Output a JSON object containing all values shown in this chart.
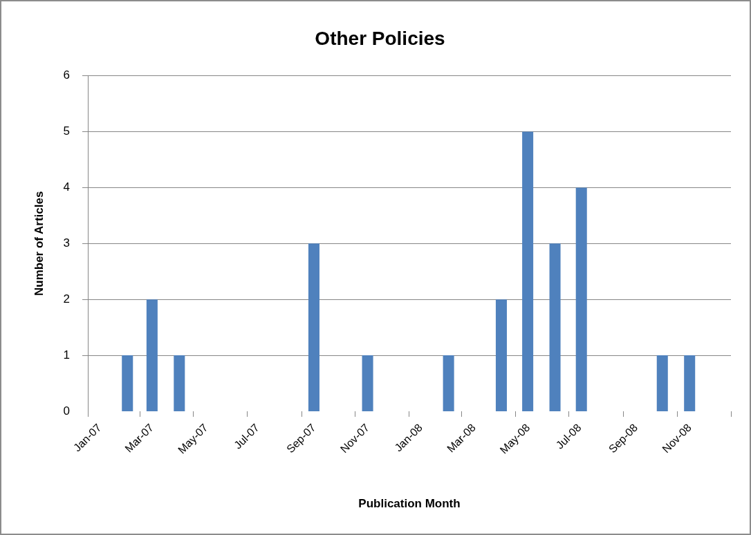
{
  "chart_data": {
    "type": "bar",
    "title": "Other Policies",
    "xlabel": "Publication Month",
    "ylabel": "Number of Articles",
    "x": [
      "2007-02-15",
      "2007-03-15",
      "2007-04-15",
      "2007-09-15",
      "2007-11-15",
      "2008-02-15",
      "2008-04-15",
      "2008-05-15",
      "2008-06-15",
      "2008-07-15",
      "2008-10-15",
      "2008-11-15"
    ],
    "values": [
      1,
      2,
      1,
      3,
      1,
      1,
      2,
      5,
      3,
      4,
      1,
      1
    ],
    "color": "#4f81bd",
    "xlim": [
      "2007-01",
      "2009-01"
    ],
    "xticks": [
      {
        "value": "2007-01",
        "label": "Jan-07"
      },
      {
        "value": "2007-03",
        "label": "Mar-07"
      },
      {
        "value": "2007-05",
        "label": "May-07"
      },
      {
        "value": "2007-07",
        "label": "Jul-07"
      },
      {
        "value": "2007-09",
        "label": "Sep-07"
      },
      {
        "value": "2007-11",
        "label": "Nov-07"
      },
      {
        "value": "2008-01",
        "label": "Jan-08"
      },
      {
        "value": "2008-03",
        "label": "Mar-08"
      },
      {
        "value": "2008-05",
        "label": "May-08"
      },
      {
        "value": "2008-07",
        "label": "Jul-08"
      },
      {
        "value": "2008-09",
        "label": "Sep-08"
      },
      {
        "value": "2008-11",
        "label": "Nov-08"
      },
      {
        "value": "2009-01",
        "label": null
      }
    ],
    "ylim": [
      0,
      6
    ],
    "yticks": [
      0,
      1,
      2,
      3,
      4,
      5,
      6
    ],
    "grid": "y"
  }
}
